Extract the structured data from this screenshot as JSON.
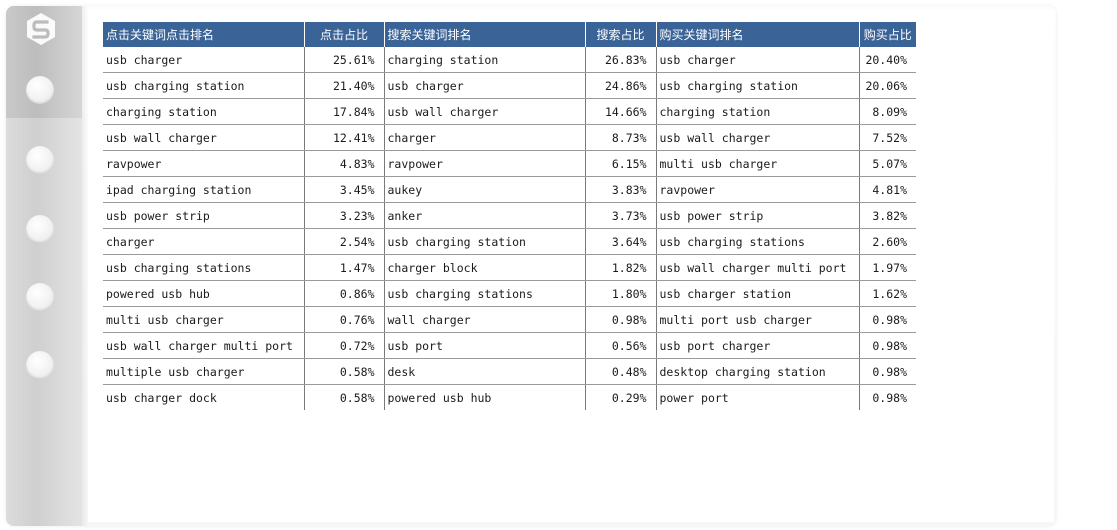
{
  "table": {
    "headers": [
      "点击关键词点击排名",
      "点击占比",
      "搜索关键词排名",
      "搜索占比",
      "购买关键词排名",
      "购买占比"
    ],
    "rows": [
      [
        "usb charger",
        "25.61%",
        "charging station",
        "26.83%",
        "usb charger",
        "20.40%"
      ],
      [
        "usb charging station",
        "21.40%",
        "usb charger",
        "24.86%",
        "usb charging station",
        "20.06%"
      ],
      [
        "charging station",
        "17.84%",
        "usb wall charger",
        "14.66%",
        "charging station",
        "8.09%"
      ],
      [
        "usb wall charger",
        "12.41%",
        "charger",
        "8.73%",
        "usb wall charger",
        "7.52%"
      ],
      [
        "ravpower",
        "4.83%",
        "ravpower",
        "6.15%",
        "multi usb charger",
        "5.07%"
      ],
      [
        "ipad charging station",
        "3.45%",
        "aukey",
        "3.83%",
        "ravpower",
        "4.81%"
      ],
      [
        "usb power strip",
        "3.23%",
        "anker",
        "3.73%",
        "usb power strip",
        "3.82%"
      ],
      [
        "charger",
        "2.54%",
        "usb charging station",
        "3.64%",
        "usb charging stations",
        "2.60%"
      ],
      [
        "usb charging stations",
        "1.47%",
        "charger block",
        "1.82%",
        "usb wall charger multi port",
        "1.97%"
      ],
      [
        "powered usb hub",
        "0.86%",
        "usb charging stations",
        "1.80%",
        "usb charger station",
        "1.62%"
      ],
      [
        "multi usb charger",
        "0.76%",
        "wall charger",
        "0.98%",
        "multi port usb charger",
        "0.98%"
      ],
      [
        "usb wall charger multi port",
        "0.72%",
        "usb port",
        "0.56%",
        "usb port charger",
        "0.98%"
      ],
      [
        "multiple usb charger",
        "0.58%",
        "desk",
        "0.48%",
        "desktop charging station",
        "0.98%"
      ],
      [
        "usb charger dock",
        "0.58%",
        "powered usb hub",
        "0.29%",
        "power port",
        "0.98%"
      ]
    ]
  },
  "colors": {
    "header_bg": "#3a6397",
    "header_text": "#ffffff",
    "cell_text": "#1a1a1a",
    "grid": "#7a7a7a"
  },
  "sidebar": {
    "logo_icon": "s-logo-icon",
    "items": [
      "nav-dot-icon",
      "nav-dot-icon",
      "nav-dot-icon",
      "nav-dot-icon",
      "nav-dot-icon"
    ]
  }
}
